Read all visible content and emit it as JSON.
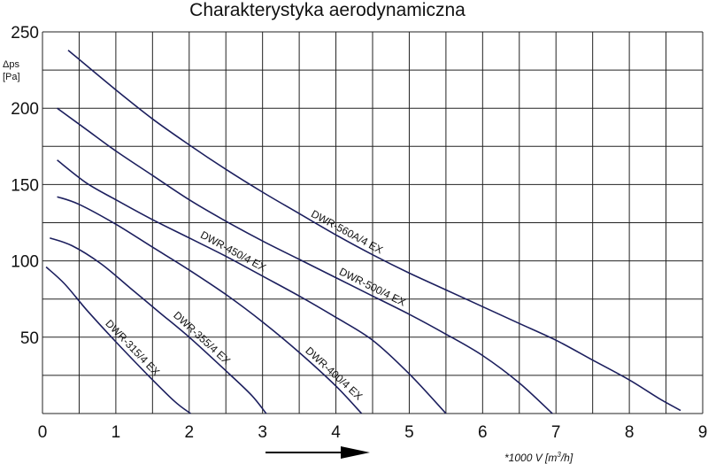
{
  "chart_data": {
    "type": "line",
    "title": "Charakterystyka aerodynamiczna",
    "ylabel_line1": "Δps",
    "ylabel_line2": "[Pa]",
    "xlabel_prefix": "*1000 V [m",
    "xlabel_sup": "3",
    "xlabel_suffix": "/h]",
    "xlim": [
      0,
      9
    ],
    "ylim": [
      0,
      250
    ],
    "x_ticks": [
      0,
      1,
      2,
      3,
      4,
      5,
      6,
      7,
      8,
      9
    ],
    "y_ticks": [
      50,
      100,
      150,
      200,
      250
    ],
    "grid": true,
    "series": [
      {
        "name": "DWR-315/4 EX",
        "x": [
          0.05,
          0.3,
          0.6,
          1.0,
          1.4,
          1.8,
          2.02
        ],
        "y": [
          96,
          85,
          68,
          47,
          27,
          8,
          0
        ]
      },
      {
        "name": "DWR-355/4 EX",
        "x": [
          0.1,
          0.4,
          0.8,
          1.2,
          1.6,
          2.0,
          2.5,
          2.85,
          3.05
        ],
        "y": [
          115,
          110,
          98,
          82,
          66,
          50,
          28,
          12,
          0
        ]
      },
      {
        "name": "DWR-400/4 EX",
        "x": [
          0.2,
          0.5,
          1.0,
          1.5,
          2.0,
          2.5,
          3.0,
          3.5,
          4.0,
          4.35
        ],
        "y": [
          142,
          137,
          124,
          109,
          94,
          78,
          60,
          40,
          18,
          0
        ]
      },
      {
        "name": "DWR-450/4 EX",
        "x": [
          0.2,
          0.6,
          1.0,
          1.5,
          2.0,
          2.5,
          3.0,
          3.5,
          4.0,
          4.5,
          5.0,
          5.5
        ],
        "y": [
          166,
          151,
          140,
          127,
          115,
          103,
          90,
          77,
          63,
          48,
          26,
          0
        ]
      },
      {
        "name": "DWR-500/4 EX",
        "x": [
          0.2,
          0.6,
          1.0,
          1.5,
          2.0,
          2.5,
          3.0,
          3.5,
          4.0,
          4.5,
          5.0,
          5.5,
          6.0,
          6.5,
          6.95
        ],
        "y": [
          200,
          186,
          172,
          156,
          140,
          126,
          113,
          101,
          89,
          77,
          65,
          52,
          38,
          20,
          0
        ]
      },
      {
        "name": "DWR-560A/4 EX",
        "x": [
          0.35,
          1.0,
          1.5,
          2.0,
          2.5,
          3.0,
          3.5,
          4.0,
          4.5,
          5.0,
          5.5,
          6.0,
          6.5,
          7.0,
          7.5,
          8.0,
          8.4,
          8.7
        ],
        "y": [
          238,
          212,
          193,
          176,
          160,
          145,
          131,
          117,
          104,
          92,
          81,
          70,
          59,
          48,
          35,
          22,
          10,
          2
        ]
      }
    ],
    "line_color": "#1c1f5e"
  }
}
